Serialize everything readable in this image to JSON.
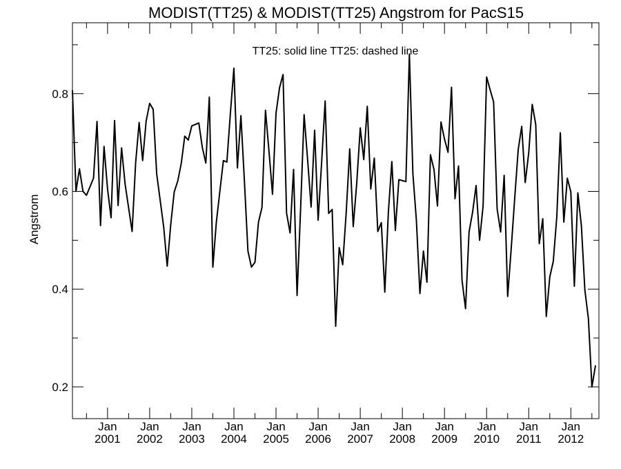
{
  "chart_data": {
    "type": "line",
    "title": "MODIST(TT25) & MODIST(TT25)  Angstrom for PacS15",
    "annotation": "TT25: solid line   TT25: dashed line",
    "ylabel": "Angstrom",
    "xlabel": "",
    "xlim": [
      "2000-03",
      "2012-09"
    ],
    "ylim": [
      0.135,
      0.945
    ],
    "yticks": [
      0.2,
      0.4,
      0.6,
      0.8
    ],
    "ytick_labels": [
      "0.2",
      "0.4",
      "0.6",
      "0.8"
    ],
    "xticks": [
      {
        "date": "2001-01",
        "month": "Jan",
        "year": "2001"
      },
      {
        "date": "2002-01",
        "month": "Jan",
        "year": "2002"
      },
      {
        "date": "2003-01",
        "month": "Jan",
        "year": "2003"
      },
      {
        "date": "2004-01",
        "month": "Jan",
        "year": "2004"
      },
      {
        "date": "2005-01",
        "month": "Jan",
        "year": "2005"
      },
      {
        "date": "2006-01",
        "month": "Jan",
        "year": "2006"
      },
      {
        "date": "2007-01",
        "month": "Jan",
        "year": "2007"
      },
      {
        "date": "2008-01",
        "month": "Jan",
        "year": "2008"
      },
      {
        "date": "2009-01",
        "month": "Jan",
        "year": "2009"
      },
      {
        "date": "2010-01",
        "month": "Jan",
        "year": "2010"
      },
      {
        "date": "2011-01",
        "month": "Jan",
        "year": "2011"
      },
      {
        "date": "2012-01",
        "month": "Jan",
        "year": "2012"
      }
    ],
    "series": [
      {
        "style": "solid",
        "points": [
          [
            "2000-03",
            0.806
          ],
          [
            "2000-04",
            0.6
          ],
          [
            "2000-05",
            0.646
          ],
          [
            "2000-06",
            0.6
          ],
          [
            "2000-07",
            0.592
          ],
          [
            "2000-09",
            0.627
          ],
          [
            "2000-10",
            0.743
          ],
          [
            "2000-11",
            0.53
          ],
          [
            "2000-12",
            0.692
          ],
          [
            "2001-01",
            0.605
          ],
          [
            "2001-02",
            0.546
          ],
          [
            "2001-03",
            0.745
          ],
          [
            "2001-04",
            0.571
          ],
          [
            "2001-05",
            0.689
          ],
          [
            "2001-06",
            0.615
          ],
          [
            "2001-08",
            0.518
          ],
          [
            "2001-09",
            0.658
          ],
          [
            "2001-10",
            0.741
          ],
          [
            "2001-11",
            0.663
          ],
          [
            "2001-12",
            0.744
          ],
          [
            "2002-01",
            0.78
          ],
          [
            "2002-02",
            0.768
          ],
          [
            "2002-03",
            0.636
          ],
          [
            "2002-05",
            0.527
          ],
          [
            "2002-06",
            0.447
          ],
          [
            "2002-07",
            0.532
          ],
          [
            "2002-08",
            0.599
          ],
          [
            "2002-09",
            0.621
          ],
          [
            "2002-10",
            0.657
          ],
          [
            "2002-11",
            0.713
          ],
          [
            "2002-12",
            0.705
          ],
          [
            "2003-01",
            0.734
          ],
          [
            "2003-03",
            0.74
          ],
          [
            "2003-04",
            0.69
          ],
          [
            "2003-05",
            0.658
          ],
          [
            "2003-06",
            0.793
          ],
          [
            "2003-07",
            0.445
          ],
          [
            "2003-08",
            0.537
          ],
          [
            "2003-09",
            0.6
          ],
          [
            "2003-10",
            0.663
          ],
          [
            "2003-11",
            0.66
          ],
          [
            "2003-12",
            0.76
          ],
          [
            "2004-01",
            0.852
          ],
          [
            "2004-02",
            0.648
          ],
          [
            "2004-03",
            0.755
          ],
          [
            "2004-04",
            0.62
          ],
          [
            "2004-05",
            0.478
          ],
          [
            "2004-06",
            0.445
          ],
          [
            "2004-07",
            0.455
          ],
          [
            "2004-08",
            0.537
          ],
          [
            "2004-09",
            0.567
          ],
          [
            "2004-10",
            0.766
          ],
          [
            "2004-11",
            0.682
          ],
          [
            "2004-12",
            0.594
          ],
          [
            "2005-01",
            0.76
          ],
          [
            "2005-02",
            0.812
          ],
          [
            "2005-03",
            0.839
          ],
          [
            "2005-04",
            0.556
          ],
          [
            "2005-05",
            0.515
          ],
          [
            "2005-06",
            0.645
          ],
          [
            "2005-07",
            0.387
          ],
          [
            "2005-08",
            0.563
          ],
          [
            "2005-09",
            0.757
          ],
          [
            "2005-10",
            0.665
          ],
          [
            "2005-11",
            0.568
          ],
          [
            "2005-12",
            0.725
          ],
          [
            "2006-01",
            0.541
          ],
          [
            "2006-02",
            0.66
          ],
          [
            "2006-03",
            0.785
          ],
          [
            "2006-04",
            0.555
          ],
          [
            "2006-05",
            0.563
          ],
          [
            "2006-06",
            0.324
          ],
          [
            "2006-07",
            0.485
          ],
          [
            "2006-08",
            0.45
          ],
          [
            "2006-09",
            0.557
          ],
          [
            "2006-10",
            0.687
          ],
          [
            "2006-11",
            0.528
          ],
          [
            "2006-12",
            0.617
          ],
          [
            "2007-01",
            0.73
          ],
          [
            "2007-02",
            0.665
          ],
          [
            "2007-03",
            0.774
          ],
          [
            "2007-04",
            0.605
          ],
          [
            "2007-05",
            0.668
          ],
          [
            "2007-06",
            0.518
          ],
          [
            "2007-07",
            0.536
          ],
          [
            "2007-08",
            0.394
          ],
          [
            "2007-09",
            0.556
          ],
          [
            "2007-10",
            0.661
          ],
          [
            "2007-11",
            0.52
          ],
          [
            "2007-12",
            0.624
          ],
          [
            "2008-01",
            0.622
          ],
          [
            "2008-02",
            0.62
          ],
          [
            "2008-03",
            0.881
          ],
          [
            "2008-04",
            0.636
          ],
          [
            "2008-05",
            0.54
          ],
          [
            "2008-06",
            0.391
          ],
          [
            "2008-07",
            0.478
          ],
          [
            "2008-08",
            0.414
          ],
          [
            "2008-09",
            0.675
          ],
          [
            "2008-10",
            0.645
          ],
          [
            "2008-11",
            0.57
          ],
          [
            "2008-12",
            0.742
          ],
          [
            "2009-01",
            0.707
          ],
          [
            "2009-02",
            0.68
          ],
          [
            "2009-03",
            0.813
          ],
          [
            "2009-04",
            0.585
          ],
          [
            "2009-05",
            0.652
          ],
          [
            "2009-06",
            0.418
          ],
          [
            "2009-07",
            0.36
          ],
          [
            "2009-08",
            0.517
          ],
          [
            "2009-09",
            0.557
          ],
          [
            "2009-10",
            0.612
          ],
          [
            "2009-11",
            0.5
          ],
          [
            "2009-12",
            0.57
          ],
          [
            "2010-01",
            0.834
          ],
          [
            "2010-02",
            0.808
          ],
          [
            "2010-03",
            0.783
          ],
          [
            "2010-04",
            0.564
          ],
          [
            "2010-05",
            0.517
          ],
          [
            "2010-06",
            0.633
          ],
          [
            "2010-07",
            0.385
          ],
          [
            "2010-08",
            0.482
          ],
          [
            "2010-09",
            0.585
          ],
          [
            "2010-10",
            0.685
          ],
          [
            "2010-11",
            0.733
          ],
          [
            "2010-12",
            0.618
          ],
          [
            "2011-01",
            0.679
          ],
          [
            "2011-02",
            0.778
          ],
          [
            "2011-03",
            0.737
          ],
          [
            "2011-04",
            0.493
          ],
          [
            "2011-05",
            0.544
          ],
          [
            "2011-06",
            0.344
          ],
          [
            "2011-07",
            0.425
          ],
          [
            "2011-08",
            0.457
          ],
          [
            "2011-09",
            0.548
          ],
          [
            "2011-10",
            0.72
          ],
          [
            "2011-11",
            0.537
          ],
          [
            "2011-12",
            0.627
          ],
          [
            "2012-01",
            0.599
          ],
          [
            "2012-02",
            0.406
          ],
          [
            "2012-03",
            0.597
          ],
          [
            "2012-04",
            0.53
          ],
          [
            "2012-05",
            0.398
          ],
          [
            "2012-06",
            0.34
          ],
          [
            "2012-07",
            0.2
          ],
          [
            "2012-08",
            0.243
          ]
        ]
      }
    ],
    "grid": false,
    "line_color": "#000000"
  }
}
